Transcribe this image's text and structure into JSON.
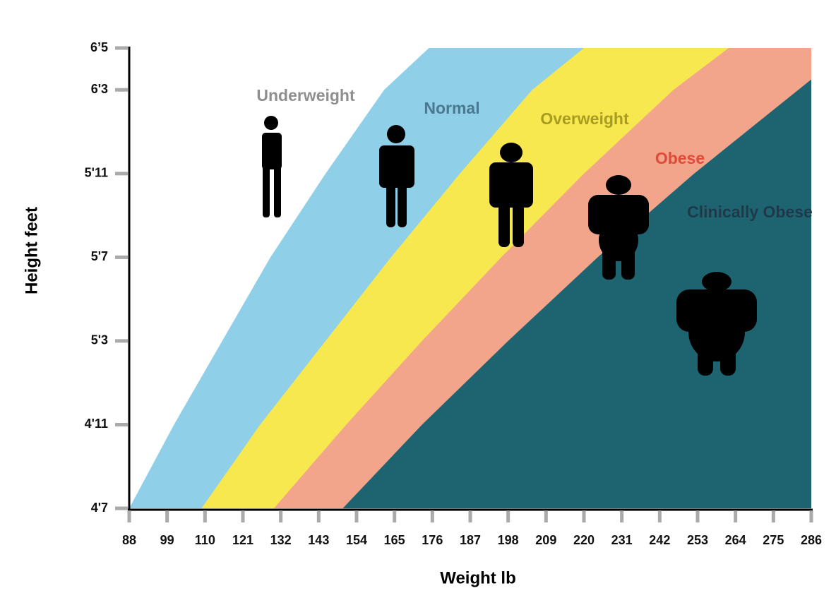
{
  "chart_data": {
    "type": "area",
    "x_label": "Weight lb",
    "y_label": "Height feet",
    "xlim": [
      88,
      286
    ],
    "xticks": [
      88,
      99,
      110,
      121,
      132,
      143,
      154,
      165,
      176,
      187,
      198,
      209,
      220,
      231,
      242,
      253,
      264,
      275,
      286
    ],
    "ylim": [
      55,
      77
    ],
    "yticks": [
      {
        "value": 55,
        "label": "4'7"
      },
      {
        "value": 59,
        "label": "4'11"
      },
      {
        "value": 63,
        "label": "5'3"
      },
      {
        "value": 67,
        "label": "5'7"
      },
      {
        "value": 71,
        "label": "5'11"
      },
      {
        "value": 75,
        "label": "6'3"
      },
      {
        "value": 77,
        "label": "6’5"
      }
    ],
    "series": [
      {
        "name": "Underweight",
        "color": "#ffffff",
        "label_color": "#8f8f8f"
      },
      {
        "name": "Normal",
        "color": "#8fd0e8",
        "label_color": "#4a7890",
        "x": [
          88,
          101,
          115,
          129,
          145,
          162,
          175
        ],
        "values": [
          55,
          59,
          63,
          67,
          71,
          75,
          77
        ]
      },
      {
        "name": "Overweight",
        "color": "#f8e850",
        "label_color": "#a89c20",
        "x": [
          109,
          126,
          145,
          164,
          184,
          205,
          220
        ],
        "values": [
          55,
          59,
          63,
          67,
          71,
          75,
          77
        ]
      },
      {
        "name": "Obese",
        "color": "#f2a58a",
        "label_color": "#e04a38",
        "x": [
          130,
          151,
          173,
          196,
          220,
          246,
          262
        ],
        "values": [
          55,
          59,
          63,
          67,
          71,
          75,
          77
        ]
      },
      {
        "name": "Clinically Obese",
        "color": "#1e6470",
        "label_color": "#1d3a4a",
        "x": [
          150,
          173,
          198,
          224,
          252,
          286
        ],
        "values": [
          55,
          59,
          63,
          67,
          71,
          75.5
        ]
      }
    ]
  }
}
